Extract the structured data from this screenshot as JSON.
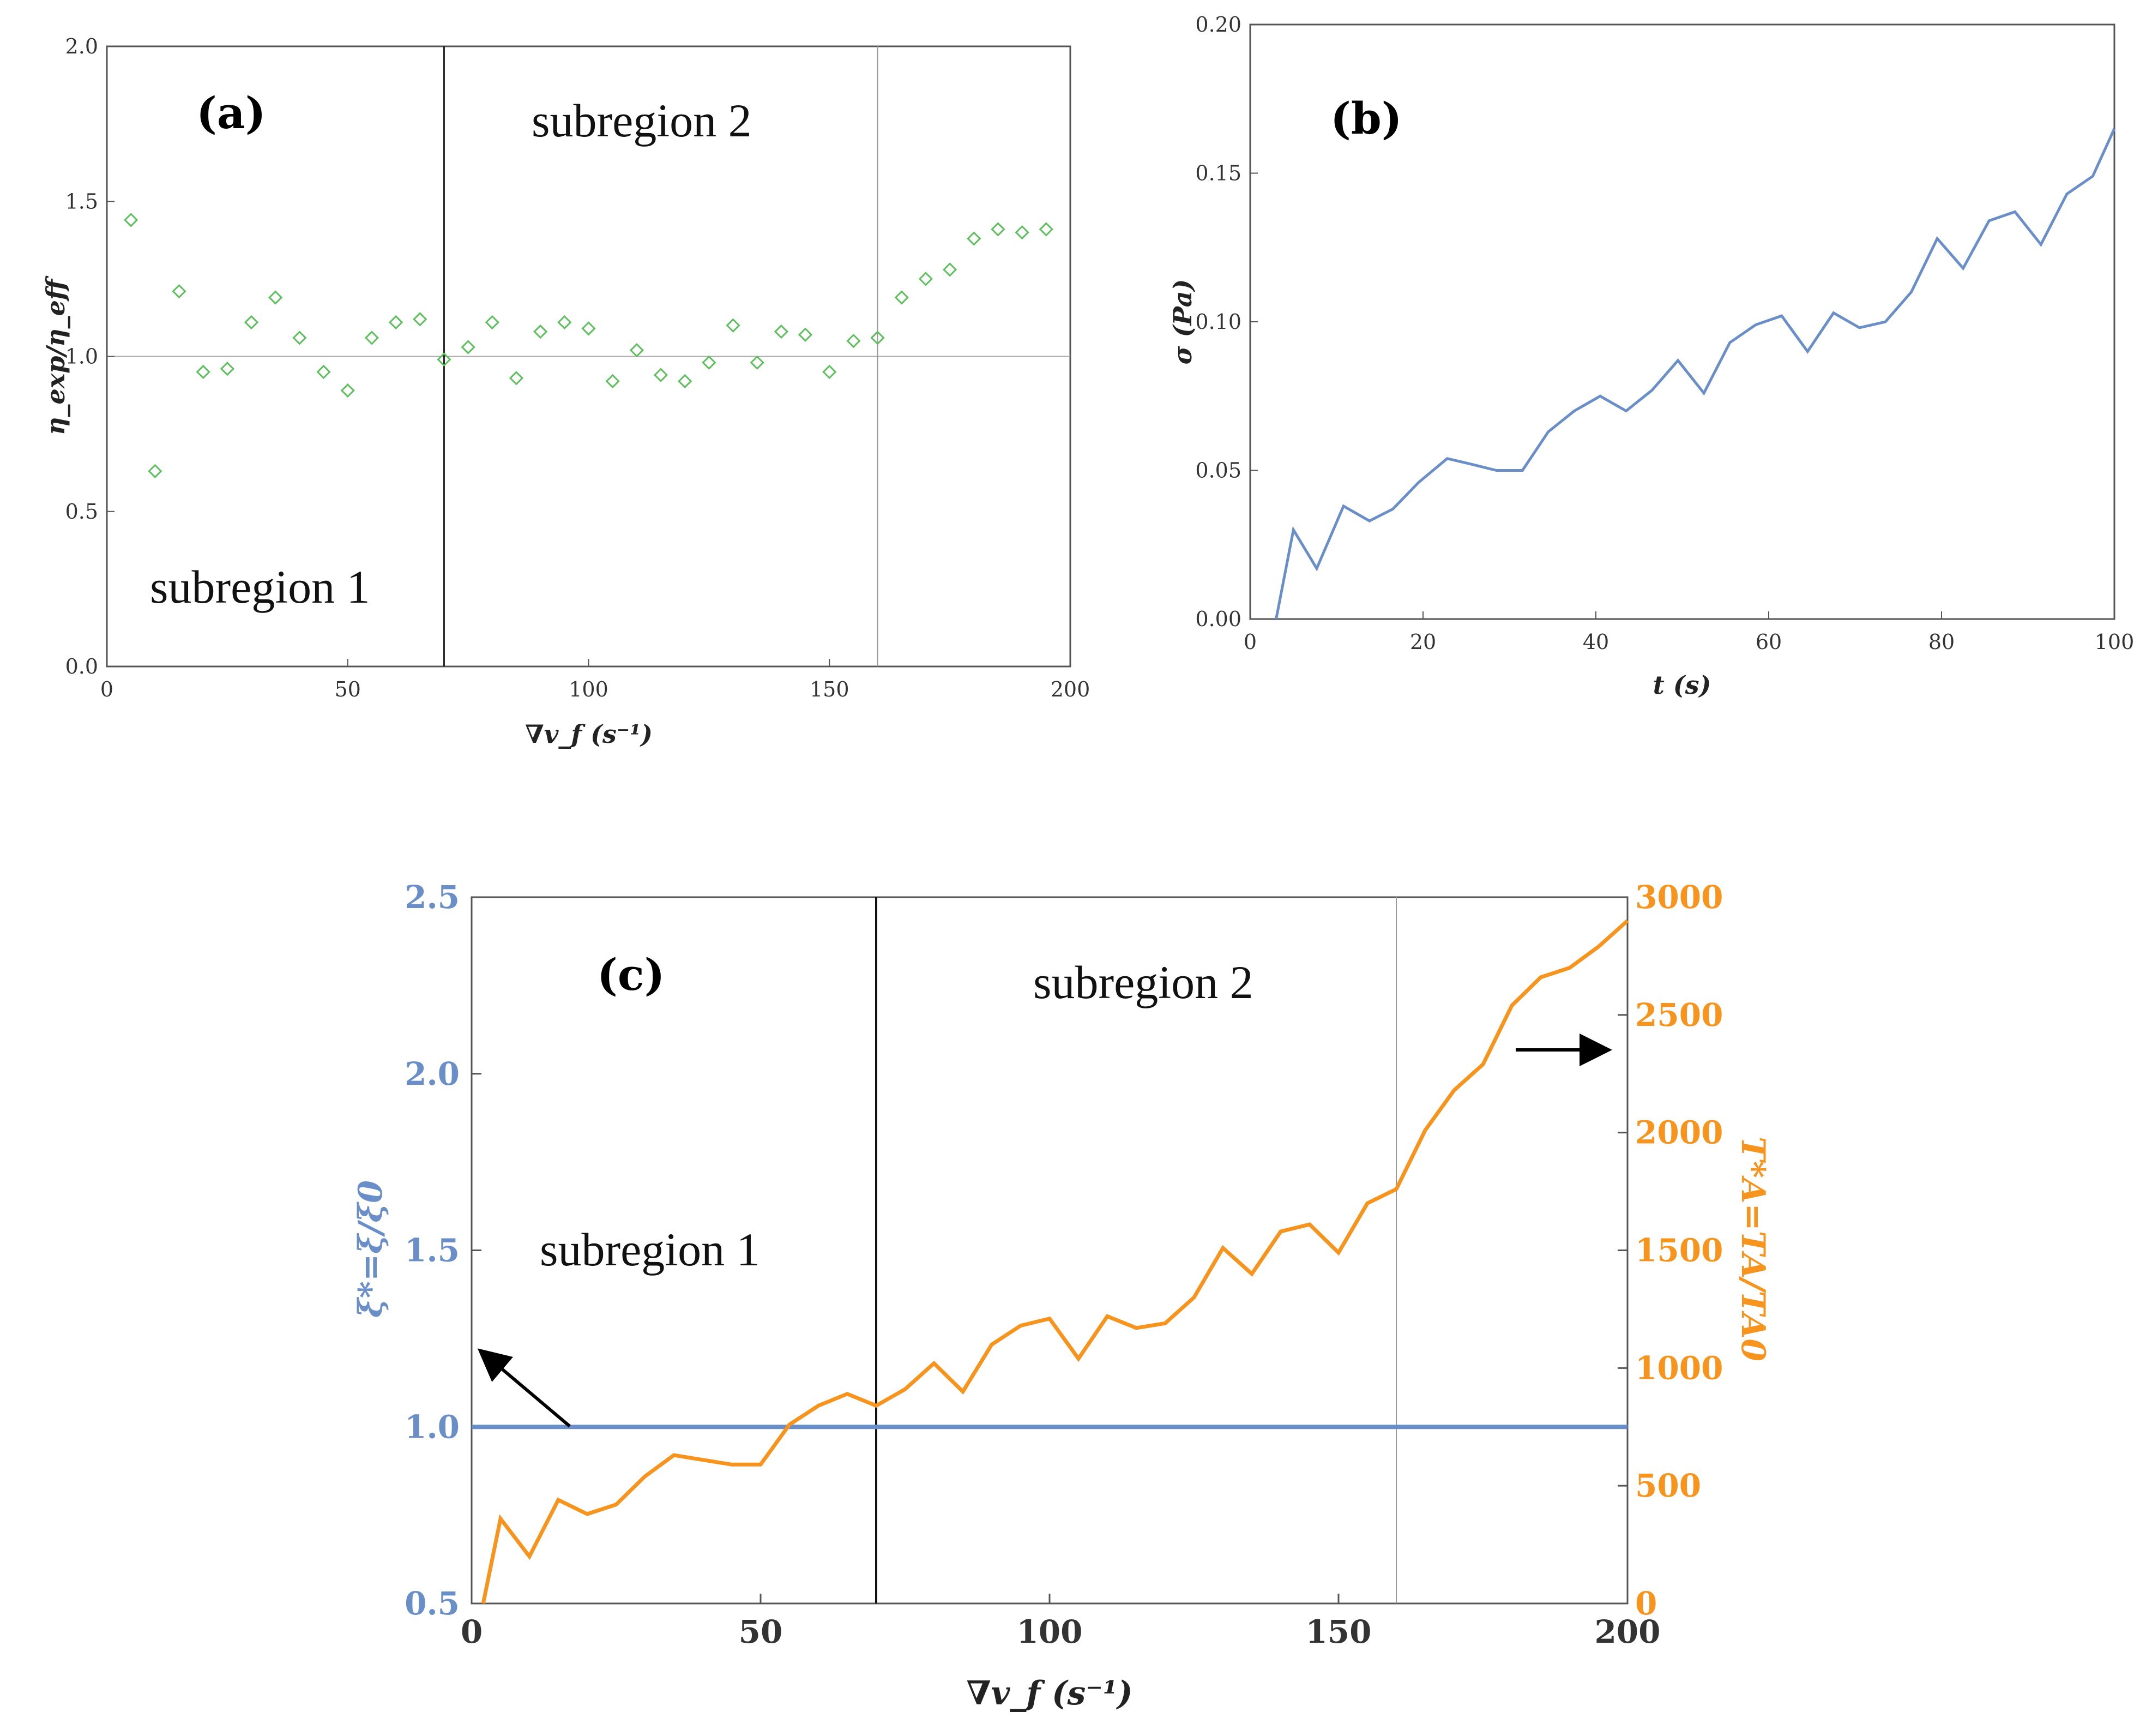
{
  "chart_data": [
    {
      "id": "a",
      "type": "scatter",
      "panel_label": "(a)",
      "xlabel": "∇v_f (s⁻¹)",
      "ylabel": "η_exp/η_eff",
      "xlim": [
        0,
        200
      ],
      "ylim": [
        0,
        2.0
      ],
      "xticks": [
        "0",
        "50",
        "100",
        "150",
        "200"
      ],
      "yticks": [
        "0.0",
        "0.5",
        "1.0",
        "1.5",
        "2.0"
      ],
      "reference_line_y": 1.0,
      "vlines": [
        70,
        160
      ],
      "region_labels": [
        "subregion 1",
        "subregion 2"
      ],
      "marker_color": "#5fbf5f",
      "points": [
        [
          5,
          1.44
        ],
        [
          10,
          0.63
        ],
        [
          15,
          1.21
        ],
        [
          20,
          0.95
        ],
        [
          25,
          0.96
        ],
        [
          30,
          1.11
        ],
        [
          35,
          1.19
        ],
        [
          40,
          1.06
        ],
        [
          45,
          0.95
        ],
        [
          50,
          0.89
        ],
        [
          55,
          1.06
        ],
        [
          60,
          1.11
        ],
        [
          65,
          1.12
        ],
        [
          70,
          0.99
        ],
        [
          75,
          1.03
        ],
        [
          80,
          1.11
        ],
        [
          85,
          0.93
        ],
        [
          90,
          1.08
        ],
        [
          95,
          1.11
        ],
        [
          100,
          1.09
        ],
        [
          105,
          0.92
        ],
        [
          110,
          1.02
        ],
        [
          115,
          0.94
        ],
        [
          120,
          0.92
        ],
        [
          125,
          0.98
        ],
        [
          130,
          1.1
        ],
        [
          135,
          0.98
        ],
        [
          140,
          1.08
        ],
        [
          145,
          1.07
        ],
        [
          150,
          0.95
        ],
        [
          155,
          1.05
        ],
        [
          160,
          1.06
        ],
        [
          165,
          1.19
        ],
        [
          170,
          1.25
        ],
        [
          175,
          1.28
        ],
        [
          180,
          1.38
        ],
        [
          185,
          1.41
        ],
        [
          190,
          1.4
        ],
        [
          195,
          1.41
        ]
      ]
    },
    {
      "id": "b",
      "type": "line",
      "panel_label": "(b)",
      "xlabel": "t (s)",
      "ylabel": "σ (Pa)",
      "xlim": [
        0,
        100
      ],
      "ylim": [
        0,
        0.2
      ],
      "xticks": [
        "0",
        "20",
        "40",
        "60",
        "80",
        "100"
      ],
      "yticks": [
        "0.00",
        "0.05",
        "0.10",
        "0.15",
        "0.20"
      ],
      "line_color": "#6a8ec8",
      "points": [
        [
          3,
          0.0
        ],
        [
          5,
          0.03
        ],
        [
          7.7,
          0.017
        ],
        [
          10.8,
          0.038
        ],
        [
          13.8,
          0.033
        ],
        [
          16.5,
          0.037
        ],
        [
          19.5,
          0.046
        ],
        [
          22.8,
          0.054
        ],
        [
          25.7,
          0.052
        ],
        [
          28.5,
          0.05
        ],
        [
          31.5,
          0.05
        ],
        [
          34.5,
          0.063
        ],
        [
          37.5,
          0.07
        ],
        [
          40.5,
          0.075
        ],
        [
          43.5,
          0.07
        ],
        [
          46.5,
          0.077
        ],
        [
          49.5,
          0.087
        ],
        [
          52.5,
          0.076
        ],
        [
          55.5,
          0.093
        ],
        [
          58.5,
          0.099
        ],
        [
          61.5,
          0.102
        ],
        [
          64.5,
          0.09
        ],
        [
          67.5,
          0.103
        ],
        [
          70.5,
          0.098
        ],
        [
          73.5,
          0.1
        ],
        [
          76.5,
          0.11
        ],
        [
          79.5,
          0.128
        ],
        [
          82.5,
          0.118
        ],
        [
          85.5,
          0.134
        ],
        [
          88.5,
          0.137
        ],
        [
          91.5,
          0.126
        ],
        [
          94.5,
          0.143
        ],
        [
          97.5,
          0.149
        ],
        [
          100,
          0.165
        ]
      ]
    },
    {
      "id": "c",
      "type": "line",
      "panel_label": "(c)",
      "xlabel": "∇v_f (s⁻¹)",
      "ylabel_left": "ξ*=ξ/ξ0",
      "ylabel_right": "T*A=TA/TA0",
      "xlim": [
        0,
        200
      ],
      "ylim_left": [
        0.5,
        2.5
      ],
      "ylim_right": [
        0,
        3000
      ],
      "xticks": [
        "0",
        "50",
        "100",
        "150",
        "200"
      ],
      "yticks_left": [
        "0.5",
        "1.0",
        "1.5",
        "2.0",
        "2.5"
      ],
      "yticks_right": [
        "0",
        "500",
        "1000",
        "1500",
        "2000",
        "2500",
        "3000"
      ],
      "vlines": [
        70,
        160
      ],
      "region_labels": [
        "subregion 1",
        "subregion 2"
      ],
      "left_color": "#6a8ec8",
      "right_color": "#f7941d",
      "series": [
        {
          "name": "ξ*",
          "axis": "left",
          "points": [
            [
              0,
              1.0
            ],
            [
              200,
              1.0
            ]
          ]
        },
        {
          "name": "T*A",
          "axis": "right",
          "points": [
            [
              2,
              0
            ],
            [
              5,
              360
            ],
            [
              10,
              200
            ],
            [
              15,
              440
            ],
            [
              20,
              380
            ],
            [
              25,
              420
            ],
            [
              30,
              540
            ],
            [
              35,
              630
            ],
            [
              40,
              610
            ],
            [
              45,
              590
            ],
            [
              50,
              590
            ],
            [
              55,
              760
            ],
            [
              60,
              840
            ],
            [
              65,
              890
            ],
            [
              70,
              840
            ],
            [
              75,
              910
            ],
            [
              80,
              1020
            ],
            [
              85,
              900
            ],
            [
              90,
              1100
            ],
            [
              95,
              1180
            ],
            [
              100,
              1210
            ],
            [
              105,
              1040
            ],
            [
              110,
              1220
            ],
            [
              115,
              1170
            ],
            [
              120,
              1190
            ],
            [
              125,
              1300
            ],
            [
              130,
              1510
            ],
            [
              135,
              1400
            ],
            [
              140,
              1580
            ],
            [
              145,
              1610
            ],
            [
              150,
              1490
            ],
            [
              155,
              1700
            ],
            [
              160,
              1760
            ],
            [
              165,
              2010
            ],
            [
              170,
              2180
            ],
            [
              175,
              2290
            ],
            [
              180,
              2540
            ],
            [
              185,
              2660
            ],
            [
              190,
              2700
            ],
            [
              195,
              2790
            ],
            [
              200,
              2900
            ]
          ]
        }
      ],
      "annotations": [
        "arrow → left axis",
        "arrow → right axis"
      ]
    }
  ]
}
